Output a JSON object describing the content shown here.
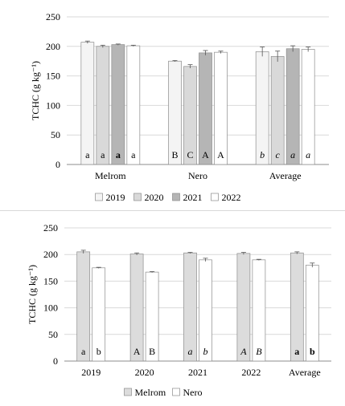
{
  "chart_data": [
    {
      "type": "bar",
      "title": "",
      "ylabel": "TCHC (g kg⁻¹)",
      "xlabel": "",
      "ylim": [
        0,
        250
      ],
      "yticks": [
        "0",
        "50",
        "100",
        "150",
        "200",
        "250"
      ],
      "categories": [
        "Melrom",
        "Nero",
        "Average"
      ],
      "legend_position": "bottom",
      "series": [
        {
          "name": "2019",
          "color": "#f4f4f4",
          "values": [
            207,
            175,
            191
          ],
          "errors": [
            2,
            1,
            8
          ]
        },
        {
          "name": "2020",
          "color": "#d9d9d9",
          "values": [
            200,
            166,
            183
          ],
          "errors": [
            2,
            3,
            9
          ]
        },
        {
          "name": "2021",
          "color": "#b5b5b5",
          "values": [
            203,
            189,
            196
          ],
          "errors": [
            1,
            4,
            5
          ]
        },
        {
          "name": "2022",
          "color": "#ffffff",
          "values": [
            201,
            190,
            195
          ],
          "errors": [
            1,
            2,
            4
          ]
        }
      ],
      "letters": [
        [
          {
            "t": "a",
            "s": "normal"
          },
          {
            "t": "a",
            "s": "normal"
          },
          {
            "t": "a",
            "s": "bold"
          },
          {
            "t": "a",
            "s": "normal"
          }
        ],
        [
          {
            "t": "B",
            "s": "normal"
          },
          {
            "t": "C",
            "s": "normal"
          },
          {
            "t": "A",
            "s": "normal"
          },
          {
            "t": "A",
            "s": "normal"
          }
        ],
        [
          {
            "t": "b",
            "s": "italic"
          },
          {
            "t": "c",
            "s": "italic"
          },
          {
            "t": "a",
            "s": "italic"
          },
          {
            "t": "a",
            "s": "italic"
          }
        ]
      ]
    },
    {
      "type": "bar",
      "title": "",
      "ylabel": "TCHC (g kg⁻¹)",
      "xlabel": "",
      "ylim": [
        0,
        250
      ],
      "yticks": [
        "0",
        "50",
        "100",
        "150",
        "200",
        "250"
      ],
      "categories": [
        "2019",
        "2020",
        "2021",
        "2022",
        "Average"
      ],
      "legend_position": "bottom",
      "series": [
        {
          "name": "Melrom",
          "color": "#dcdcdc",
          "values": [
            205,
            201,
            203,
            202,
            203
          ],
          "errors": [
            3,
            2,
            1,
            2,
            2
          ]
        },
        {
          "name": "Nero",
          "color": "#ffffff",
          "values": [
            175,
            167,
            190,
            190,
            180
          ],
          "errors": [
            1,
            1,
            3,
            1,
            4
          ]
        }
      ],
      "letters": [
        [
          {
            "t": "a",
            "s": "normal"
          },
          {
            "t": "b",
            "s": "normal"
          }
        ],
        [
          {
            "t": "A",
            "s": "normal"
          },
          {
            "t": "B",
            "s": "normal"
          }
        ],
        [
          {
            "t": "a",
            "s": "italic"
          },
          {
            "t": "b",
            "s": "italic"
          }
        ],
        [
          {
            "t": "A",
            "s": "italic"
          },
          {
            "t": "B",
            "s": "italic"
          }
        ],
        [
          {
            "t": "a",
            "s": "bold"
          },
          {
            "t": "b",
            "s": "bold"
          }
        ]
      ]
    }
  ]
}
